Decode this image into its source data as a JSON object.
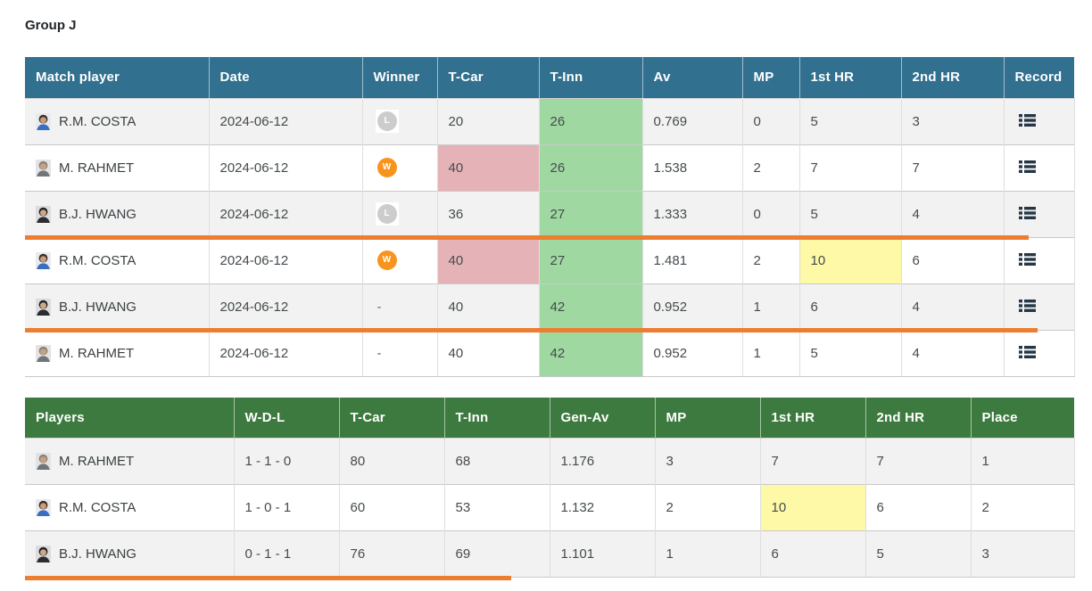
{
  "page": {
    "title": "Group J"
  },
  "colors": {
    "header_blue": "#31708f",
    "header_green": "#3d7a3f",
    "row_stripe": "#f2f2f2",
    "green_cell": "#9fd9a1",
    "pink_cell": "#e5b3b7",
    "yellow_cell": "#fdf9a6",
    "orange_line": "#ed7d31",
    "win_badge": "#f7941e",
    "loss_badge": "#cccccc",
    "record_icon": "#253746"
  },
  "match_table": {
    "headers": [
      "Match player",
      "Date",
      "Winner",
      "T-Car",
      "T-Inn",
      "Av",
      "MP",
      "1st HR",
      "2nd HR",
      "Record"
    ],
    "record_icon_name": "record-list-icon",
    "rows": [
      {
        "player": "R.M. COSTA",
        "avatar": "costa",
        "date": "2024-06-12",
        "winner": "L",
        "t_car": "20",
        "t_car_hl": false,
        "t_inn": "26",
        "av": "0.769",
        "mp": "0",
        "hr1": "5",
        "hr1_hl": false,
        "hr2": "3"
      },
      {
        "player": "M. RAHMET",
        "avatar": "rahmet",
        "date": "2024-06-12",
        "winner": "W",
        "t_car": "40",
        "t_car_hl": true,
        "t_inn": "26",
        "av": "1.538",
        "mp": "2",
        "hr1": "7",
        "hr1_hl": false,
        "hr2": "7"
      },
      {
        "player": "B.J. HWANG",
        "avatar": "hwang",
        "date": "2024-06-12",
        "winner": "L",
        "t_car": "36",
        "t_car_hl": false,
        "t_inn": "27",
        "av": "1.333",
        "mp": "0",
        "hr1": "5",
        "hr1_hl": false,
        "hr2": "4",
        "underline_width": 1125
      },
      {
        "player": "R.M. COSTA",
        "avatar": "costa",
        "date": "2024-06-12",
        "winner": "W",
        "t_car": "40",
        "t_car_hl": true,
        "t_inn": "27",
        "av": "1.481",
        "mp": "2",
        "hr1": "10",
        "hr1_hl": true,
        "hr2": "6"
      },
      {
        "player": "B.J. HWANG",
        "avatar": "hwang",
        "date": "2024-06-12",
        "winner": "-",
        "t_car": "40",
        "t_car_hl": false,
        "t_inn": "42",
        "av": "0.952",
        "mp": "1",
        "hr1": "6",
        "hr1_hl": false,
        "hr2": "4",
        "underline_width": 1135
      },
      {
        "player": "M. RAHMET",
        "avatar": "rahmet",
        "date": "2024-06-12",
        "winner": "-",
        "t_car": "40",
        "t_car_hl": false,
        "t_inn": "42",
        "av": "0.952",
        "mp": "1",
        "hr1": "5",
        "hr1_hl": false,
        "hr2": "4"
      }
    ]
  },
  "standings_table": {
    "headers": [
      "Players",
      "W-D-L",
      "T-Car",
      "T-Inn",
      "Gen-Av",
      "MP",
      "1st HR",
      "2nd HR",
      "Place"
    ],
    "rows": [
      {
        "player": "M. RAHMET",
        "avatar": "rahmet",
        "wdl": "1 - 1 - 0",
        "t_car": "80",
        "t_inn": "68",
        "gen_av": "1.176",
        "mp": "3",
        "hr1": "7",
        "hr1_hl": false,
        "hr2": "7",
        "place": "1"
      },
      {
        "player": "R.M. COSTA",
        "avatar": "costa",
        "wdl": "1 - 0 - 1",
        "t_car": "60",
        "t_inn": "53",
        "gen_av": "1.132",
        "mp": "2",
        "hr1": "10",
        "hr1_hl": true,
        "hr2": "6",
        "place": "2"
      },
      {
        "player": "B.J. HWANG",
        "avatar": "hwang",
        "wdl": "0 - 1 - 1",
        "t_car": "76",
        "t_inn": "69",
        "gen_av": "1.101",
        "mp": "1",
        "hr1": "6",
        "hr1_hl": false,
        "hr2": "5",
        "place": "3",
        "underline_width": 545
      }
    ]
  },
  "avatars": {
    "costa": {
      "bg": "#e8eaee",
      "skin": "#c99d7b",
      "hair": "#3e2f23",
      "shirt": "#3a6ec0"
    },
    "rahmet": {
      "bg": "#e3e3e5",
      "skin": "#c7a183",
      "hair": "#8d8378",
      "shirt": "#707579"
    },
    "hwang": {
      "bg": "#dcdcde",
      "skin": "#d0a886",
      "hair": "#201f22",
      "shirt": "#2b2b30"
    }
  }
}
